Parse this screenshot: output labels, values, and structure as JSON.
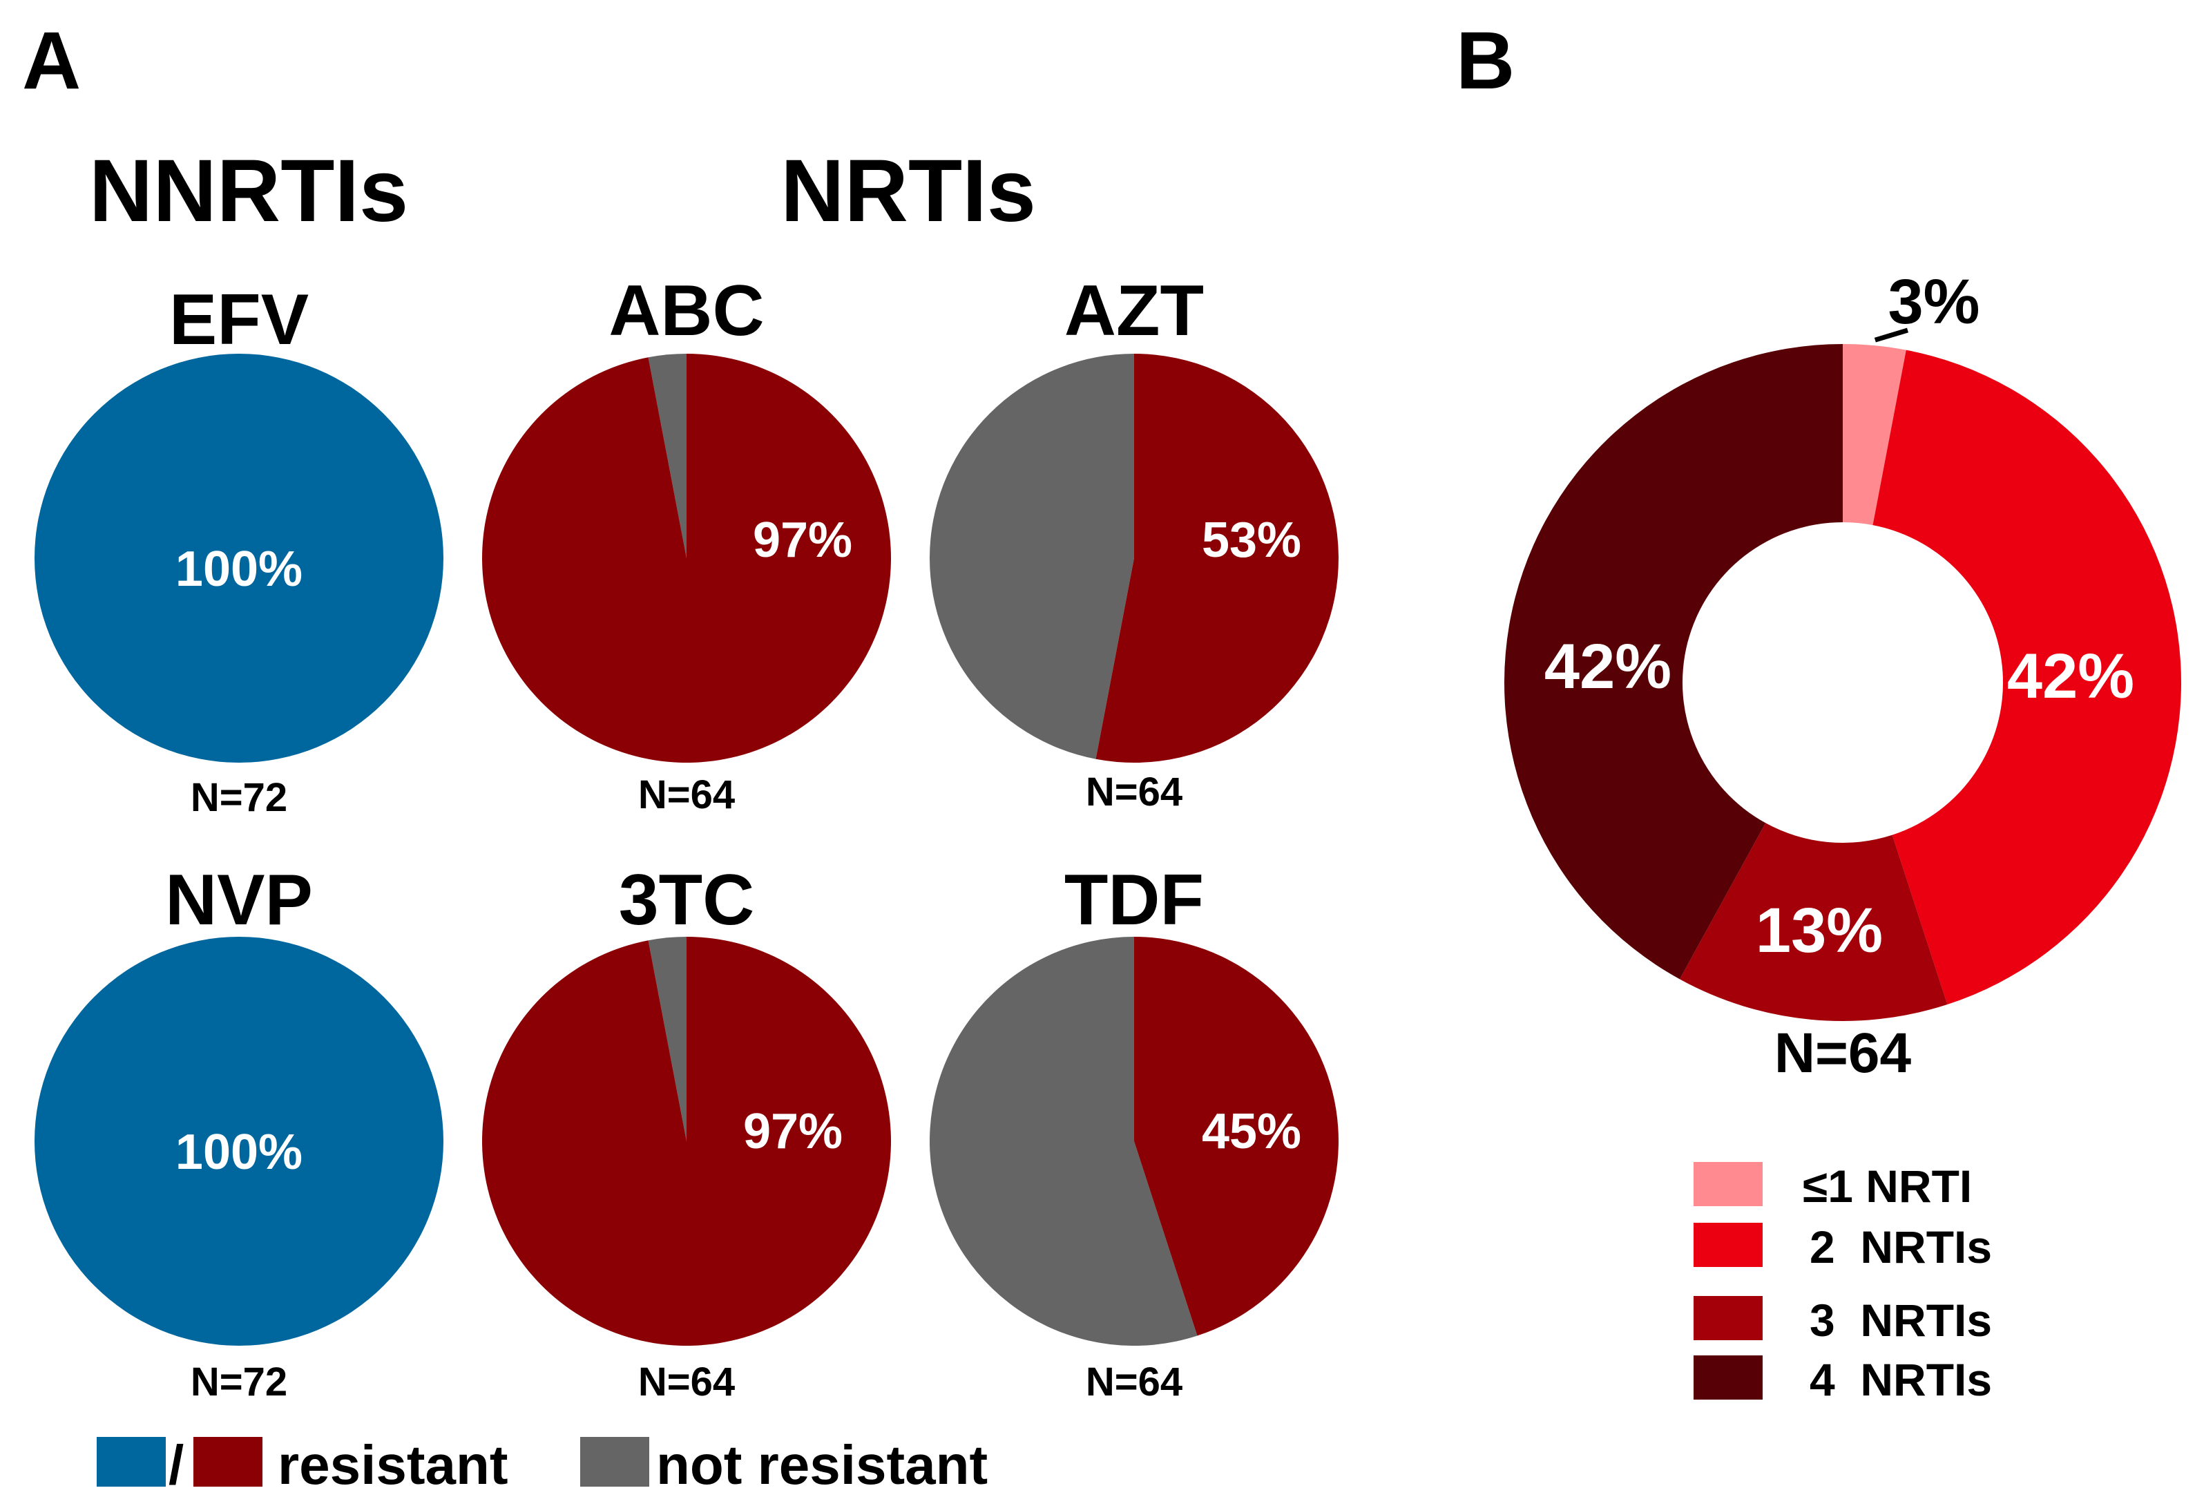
{
  "panels": {
    "a": "A",
    "b": "B"
  },
  "groups": {
    "nnrti": "NNRTIs",
    "nrti": "NRTIs"
  },
  "colors": {
    "resistant_nnrti": "#00679e",
    "resistant_nrti": "#8b0005",
    "not_resistant": "#656565",
    "b_le1": "#ff8a8f",
    "b_2": "#ea0011",
    "b_3": "#a3000a",
    "b_4": "#570005"
  },
  "chart_data": [
    {
      "type": "pie",
      "title": "EFV",
      "group": "NNRTIs",
      "n_label": "N=72",
      "slices": [
        {
          "name": "resistant",
          "value": 100,
          "label": "100%"
        },
        {
          "name": "not resistant",
          "value": 0
        }
      ]
    },
    {
      "type": "pie",
      "title": "NVP",
      "group": "NNRTIs",
      "n_label": "N=72",
      "slices": [
        {
          "name": "resistant",
          "value": 100,
          "label": "100%"
        },
        {
          "name": "not resistant",
          "value": 0
        }
      ]
    },
    {
      "type": "pie",
      "title": "ABC",
      "group": "NRTIs",
      "n_label": "N=64",
      "slices": [
        {
          "name": "resistant",
          "value": 97,
          "label": "97%"
        },
        {
          "name": "not resistant",
          "value": 3
        }
      ]
    },
    {
      "type": "pie",
      "title": "3TC",
      "group": "NRTIs",
      "n_label": "N=64",
      "slices": [
        {
          "name": "resistant",
          "value": 97,
          "label": "97%"
        },
        {
          "name": "not resistant",
          "value": 3
        }
      ]
    },
    {
      "type": "pie",
      "title": "AZT",
      "group": "NRTIs",
      "n_label": "N=64",
      "slices": [
        {
          "name": "resistant",
          "value": 53,
          "label": "53%"
        },
        {
          "name": "not resistant",
          "value": 47
        }
      ]
    },
    {
      "type": "pie",
      "title": "TDF",
      "group": "NRTIs",
      "n_label": "N=64",
      "slices": [
        {
          "name": "resistant",
          "value": 45,
          "label": "45%"
        },
        {
          "name": "not resistant",
          "value": 55
        }
      ]
    },
    {
      "type": "pie",
      "subtype": "donut",
      "title": "",
      "n_label": "N=64",
      "slices": [
        {
          "name": "≤1 NRTI",
          "value": 3,
          "label": "3%"
        },
        {
          "name": "2  NRTIs",
          "value": 42,
          "label": "42%"
        },
        {
          "name": "3  NRTIs",
          "value": 13,
          "label": "13%"
        },
        {
          "name": "4  NRTIs",
          "value": 42,
          "label": "42%"
        }
      ]
    }
  ],
  "legend_a": {
    "separator": "/",
    "resistant": "resistant",
    "not_resistant": "not resistant"
  },
  "legend_b": [
    "≤1 NRTI",
    "2  NRTIs",
    "3  NRTIs",
    "4  NRTIs"
  ]
}
